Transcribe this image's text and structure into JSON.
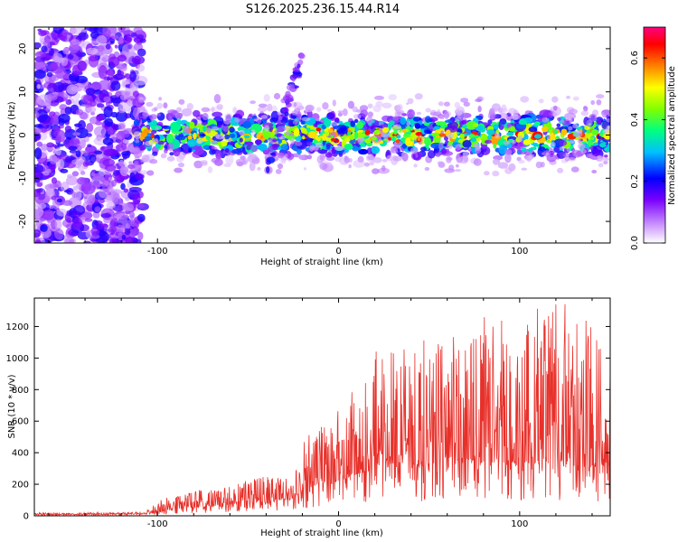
{
  "chart_data": [
    {
      "type": "heatmap",
      "title": "S126.2025.236.15.44.R14",
      "xlabel": "Height of straight line (km)",
      "ylabel": "Frequency (Hz)",
      "xlim": [
        -168,
        150
      ],
      "ylim": [
        -25,
        25
      ],
      "x_ticks": [
        -100,
        0,
        100
      ],
      "x_tick_labels": [
        "-100",
        "0",
        "100"
      ],
      "y_ticks": [
        -20,
        -10,
        0,
        10,
        20
      ],
      "y_tick_labels": [
        "-20",
        "-10",
        "0",
        "10",
        "20"
      ],
      "colorbar": {
        "label": "Normalized spectral amplitude",
        "range": [
          0.0,
          0.7
        ],
        "ticks": [
          0.0,
          0.2,
          0.4,
          0.6
        ],
        "tick_labels": [
          "0.0",
          "0.2",
          "0.4",
          "0.6"
        ],
        "colormap": [
          "#ffffff",
          "#c080ff",
          "#7a00ff",
          "#0000ff",
          "#00c0ff",
          "#00ff80",
          "#80ff00",
          "#ffff00",
          "#ff8000",
          "#ff0000",
          "#ff0080"
        ]
      },
      "regions": [
        {
          "name": "broadband noise",
          "x": [
            -168,
            -108
          ],
          "freq": [
            -25,
            25
          ],
          "amplitude": 0.12
        },
        {
          "name": "primary signal band",
          "x": [
            -112,
            150
          ],
          "freq_center": 0,
          "freq_halfwidth": 4,
          "amplitude": 0.45
        },
        {
          "name": "peak detections",
          "x": [
            -20,
            45
          ],
          "freq_center": 0,
          "amplitude": 0.65
        },
        {
          "name": "diagonal streak",
          "x": [
            -40,
            -20
          ],
          "freq": [
            -8,
            18
          ],
          "amplitude": 0.15
        }
      ]
    },
    {
      "type": "line",
      "xlabel": "Height of straight line (km)",
      "ylabel": "SNR (10 * v/v)",
      "xlim": [
        -168,
        150
      ],
      "ylim": [
        0,
        1380
      ],
      "x_ticks": [
        -100,
        0,
        100
      ],
      "x_tick_labels": [
        "-100",
        "0",
        "100"
      ],
      "y_ticks": [
        0,
        200,
        400,
        600,
        800,
        1000,
        1200
      ],
      "y_tick_labels": [
        "0",
        "200",
        "400",
        "600",
        "800",
        "1000",
        "1200"
      ],
      "series": [
        {
          "name": "SNR",
          "color": "#e8302a",
          "envelope": {
            "x": [
              -168,
              -140,
              -110,
              -95,
              -80,
              -60,
              -40,
              -25,
              -20,
              -10,
              0,
              10,
              18,
              25,
              40,
              60,
              80,
              100,
              120,
              135,
              150
            ],
            "peak": [
              20,
              20,
              25,
              120,
              160,
              200,
              260,
              230,
              480,
              580,
              700,
              840,
              1110,
              1080,
              1120,
              1150,
              1280,
              1250,
              1380,
              1300,
              950
            ],
            "base": [
              8,
              8,
              10,
              30,
              50,
              70,
              90,
              100,
              150,
              200,
              220,
              260,
              280,
              300,
              300,
              320,
              340,
              320,
              330,
              310,
              300
            ]
          }
        }
      ]
    }
  ]
}
